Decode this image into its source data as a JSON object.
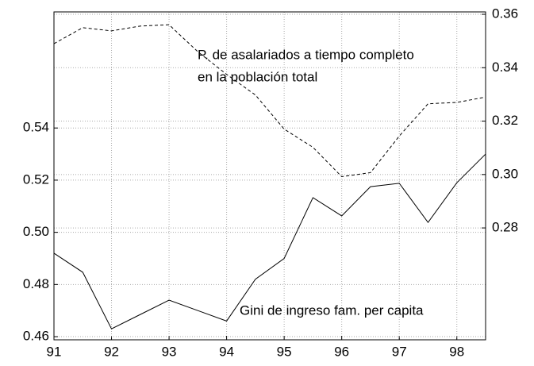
{
  "chart_data": {
    "type": "line",
    "x": [
      91,
      91.5,
      92,
      92.5,
      93,
      93.5,
      94,
      94.5,
      95,
      95.5,
      96,
      96.5,
      97,
      97.5,
      98,
      98.5
    ],
    "xlim": [
      91,
      98.5
    ],
    "xticks": [
      91,
      92,
      93,
      94,
      95,
      96,
      97,
      98
    ],
    "ylim": [
      0.4588,
      0.5845
    ],
    "yticks": [
      0.46,
      0.48,
      0.5,
      0.52,
      0.54
    ],
    "y2lim": [
      0.2381,
      0.3609
    ],
    "y2ticks": [
      0.28,
      0.3,
      0.32,
      0.34,
      0.36
    ],
    "grid": true,
    "series": [
      {
        "label_lines": [
          "Gini de ingreso fam. per capita"
        ],
        "color": "#000000",
        "dash": false,
        "axis": "y",
        "values": [
          0.492,
          0.4847,
          0.463,
          0.4685,
          0.474,
          0.47,
          0.466,
          0.482,
          0.49,
          0.5133,
          0.5063,
          0.5175,
          0.5188,
          0.5038,
          0.519,
          0.53
        ]
      },
      {
        "label_lines": [
          "P. de asalariados a tiempo completo",
          "en la población total"
        ],
        "color": "#000000",
        "dash": true,
        "axis": "y2",
        "values": [
          0.349,
          0.355,
          0.3538,
          0.3556,
          0.3561,
          0.346,
          0.3375,
          0.3298,
          0.317,
          0.3102,
          0.2992,
          0.3007,
          0.3144,
          0.3265,
          0.327,
          0.329
        ]
      }
    ]
  }
}
